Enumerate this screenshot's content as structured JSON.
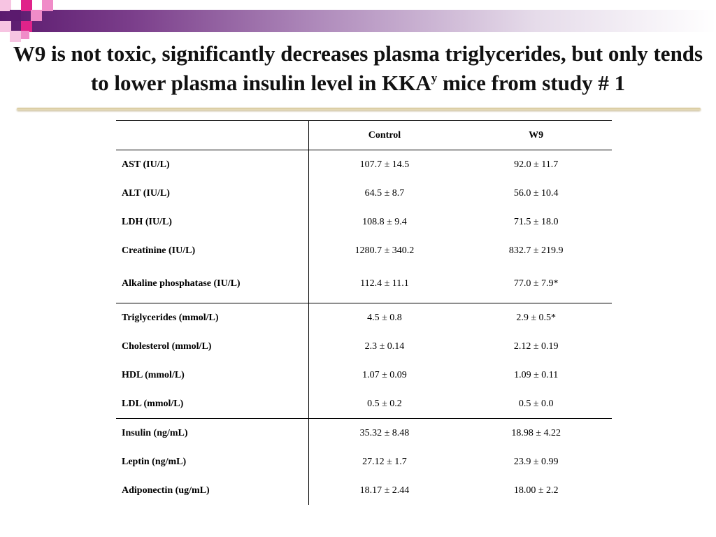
{
  "slide": {
    "title_main": "W9 is not toxic, significantly decreases plasma triglycerides, but only tends to lower plasma insulin level in KKA",
    "title_sup": "y",
    "title_end": " mice from study # 1"
  },
  "table": {
    "headers": [
      "",
      "Control",
      "W9"
    ],
    "groups": [
      {
        "rows": [
          {
            "label": "AST (IU/L)",
            "control": "107.7 ± 14.5",
            "w9": "92.0 ± 11.7"
          },
          {
            "label": "ALT (IU/L)",
            "control": "64.5 ± 8.7",
            "w9": "56.0 ± 10.4"
          },
          {
            "label": "LDH (IU/L)",
            "control": "108.8 ± 9.4",
            "w9": "71.5 ± 18.0"
          },
          {
            "label": "Creatinine (IU/L)",
            "control": "1280.7 ± 340.2",
            "w9": "832.7 ± 219.9"
          },
          {
            "label": "Alkaline phosphatase (IU/L)",
            "control": "112.4 ± 11.1",
            "w9": "77.0 ± 7.9*"
          }
        ]
      },
      {
        "rows": [
          {
            "label": "Triglycerides (mmol/L)",
            "control": "4.5 ± 0.8",
            "w9": "2.9 ± 0.5*"
          },
          {
            "label": "Cholesterol (mmol/L)",
            "control": "2.3 ± 0.14",
            "w9": "2.12 ± 0.19"
          },
          {
            "label": "HDL (mmol/L)",
            "control": "1.07 ± 0.09",
            "w9": "1.09 ± 0.11"
          },
          {
            "label": "LDL (mmol/L)",
            "control": "0.5 ± 0.2",
            "w9": "0.5 ± 0.0"
          }
        ]
      },
      {
        "rows": [
          {
            "label": "Insulin (ng/mL)",
            "control": "35.32 ± 8.48",
            "w9": "18.98 ± 4.22"
          },
          {
            "label": "Leptin (ng/mL)",
            "control": "27.12 ± 1.7",
            "w9": "23.9 ± 0.99"
          },
          {
            "label": "Adiponectin (ug/mL)",
            "control": "18.17 ± 2.44",
            "w9": "18.00 ± 2.2"
          }
        ]
      }
    ]
  },
  "colors": {
    "banner_dark": "#5b1a6e",
    "accent_magenta": "#e0238a",
    "accent_pink": "#f08cc8",
    "rule": "#d6c79a"
  }
}
